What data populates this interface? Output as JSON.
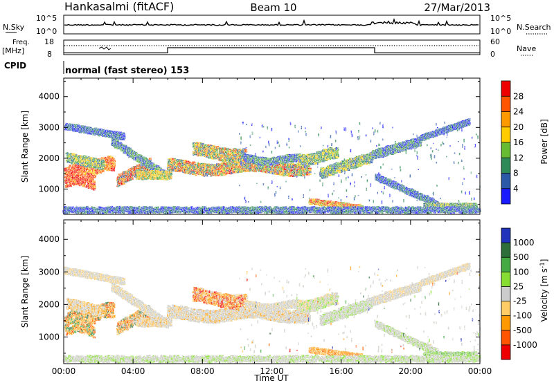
{
  "header": {
    "station": "Hankasalmi (fitACF)",
    "beam": "Beam 10",
    "date": "27/Mar/2013"
  },
  "noise_panel": {
    "left_label": "N.Sky",
    "left_ticks": [
      "10^5",
      "10^0"
    ],
    "right_ticks": [
      "10^5",
      "10^0"
    ],
    "right_label": "N.Search"
  },
  "freq_panel": {
    "left_label_1": "Freq.",
    "left_label_2": "[MHz]",
    "left_ticks": [
      "18",
      "8"
    ],
    "right_ticks": [
      "60",
      "0"
    ],
    "right_label": "Nave"
  },
  "cpid": {
    "label": "CPID",
    "value": "normal (fast stereo) 153"
  },
  "colors": {
    "power": [
      "#1a1aff",
      "#2b59a8",
      "#2e8b57",
      "#66bb33",
      "#ffcc00",
      "#ff9900",
      "#ff5500",
      "#ee0000"
    ],
    "velocity": [
      "#2233bb",
      "#2e6e3a",
      "#44aa44",
      "#88dd33",
      "#cccccc",
      "#ffcc66",
      "#ff9900",
      "#ff5500",
      "#ee0000"
    ],
    "gray_scatter": "#c8c8c0"
  },
  "chart_data": [
    {
      "type": "heatmap",
      "panel": "power",
      "ylabel": "Slant Range [km]",
      "yticks": [
        "1000",
        "2000",
        "3000",
        "4000"
      ],
      "colorbar_label": "Power [dB]",
      "colorbar_ticks": [
        "4",
        "8",
        "12",
        "16",
        "20",
        "24",
        "28"
      ],
      "x_range_hours": [
        0,
        24
      ],
      "y_range_km": [
        180,
        4600
      ]
    },
    {
      "type": "heatmap",
      "panel": "velocity",
      "ylabel": "Slant Range [km]",
      "yticks": [
        "1000",
        "2000",
        "3000",
        "4000"
      ],
      "colorbar_label": "Velocity [m s^-1]",
      "colorbar_ticks": [
        "1000",
        "500",
        "100",
        "25",
        "-25",
        "-100",
        "-500",
        "-1000"
      ],
      "xlabel": "Time UT",
      "xticks": [
        "00:00",
        "04:00",
        "08:00",
        "12:00",
        "16:00",
        "20:00",
        "00:00"
      ],
      "x_range_hours": [
        0,
        24
      ],
      "y_range_km": [
        180,
        4600
      ]
    }
  ]
}
